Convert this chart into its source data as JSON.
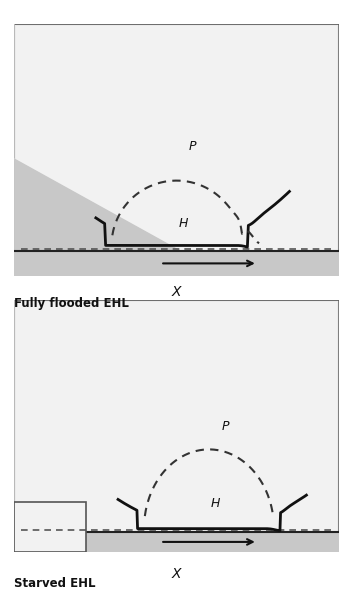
{
  "fig_width": 3.53,
  "fig_height": 6.0,
  "dpi": 100,
  "bg_color": "#ffffff",
  "panel_bg": "#e8e8e8",
  "inner_bg": "#f0f0f0",
  "dark_gray": "#a0a0a0",
  "label1": "Fully flooded EHL",
  "label2": "Starved EHL",
  "xlabel": "X",
  "arrow_label": "",
  "H_label": "H",
  "P_label": "P"
}
